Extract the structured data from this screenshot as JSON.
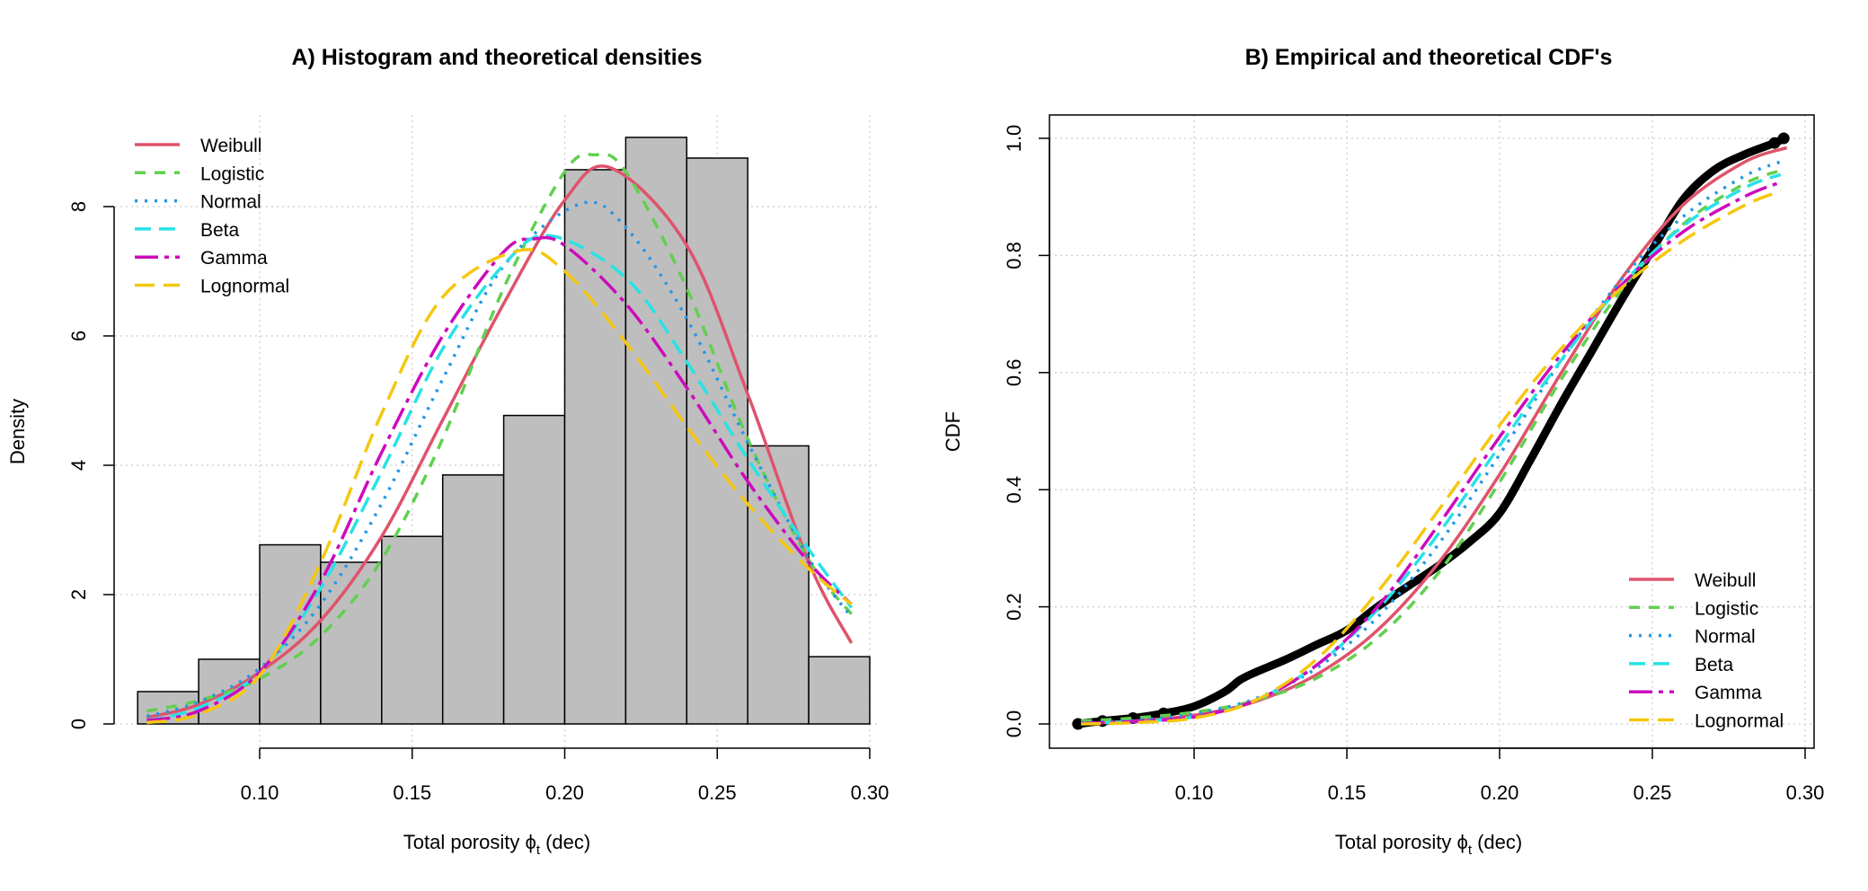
{
  "chart_data": [
    {
      "type": "histogram+line",
      "title": "A) Histogram and theoretical densities",
      "xlabel": "Total porosity ϕt (dec)",
      "xlabel_parts": {
        "main": "Total porosity ",
        "symbol": "ϕ",
        "sub": "t",
        "unit": " (dec)"
      },
      "ylabel": "Density",
      "xlim": [
        0.06,
        0.3
      ],
      "ylim": [
        0,
        9.2
      ],
      "xticks": [
        "0.10",
        "0.15",
        "0.20",
        "0.25",
        "0.30"
      ],
      "xtick_values": [
        0.1,
        0.15,
        0.2,
        0.25,
        0.3
      ],
      "yticks": [
        "0",
        "2",
        "4",
        "6",
        "8"
      ],
      "ytick_values": [
        0,
        2,
        4,
        6,
        8
      ],
      "grid": true,
      "legend_position": "top-left",
      "histogram": {
        "bin_edges": [
          0.06,
          0.08,
          0.1,
          0.12,
          0.14,
          0.16,
          0.18,
          0.2,
          0.22,
          0.24,
          0.26,
          0.28,
          0.3
        ],
        "densities": [
          0.5,
          1.0,
          2.77,
          2.5,
          2.9,
          3.85,
          4.77,
          8.57,
          9.07,
          8.75,
          4.3,
          1.04
        ],
        "fill": "#BEBEBE"
      },
      "series": [
        {
          "name": "Weibull",
          "color": "#DF536B",
          "style": "solid",
          "x": [
            0.063,
            0.08,
            0.1,
            0.12,
            0.14,
            0.16,
            0.18,
            0.2,
            0.215,
            0.24,
            0.26,
            0.28,
            0.294
          ],
          "y": [
            0.1,
            0.3,
            0.8,
            1.6,
            2.9,
            4.7,
            6.5,
            8.1,
            8.6,
            7.4,
            5.1,
            2.5,
            1.25
          ]
        },
        {
          "name": "Logistic",
          "color": "#61D04F",
          "style": "dashed",
          "x": [
            0.063,
            0.08,
            0.1,
            0.12,
            0.14,
            0.16,
            0.18,
            0.2,
            0.21,
            0.22,
            0.24,
            0.26,
            0.28,
            0.294
          ],
          "y": [
            0.2,
            0.36,
            0.7,
            1.36,
            2.54,
            4.41,
            6.74,
            8.54,
            8.8,
            8.54,
            6.74,
            4.41,
            2.54,
            1.7
          ]
        },
        {
          "name": "Normal",
          "color": "#2297E6",
          "style": "dotted",
          "x": [
            0.063,
            0.08,
            0.1,
            0.12,
            0.14,
            0.16,
            0.18,
            0.205,
            0.22,
            0.24,
            0.26,
            0.28,
            0.294
          ],
          "y": [
            0.12,
            0.34,
            0.86,
            1.85,
            3.41,
            5.33,
            7.08,
            8.04,
            7.68,
            6.27,
            4.35,
            2.56,
            1.65
          ]
        },
        {
          "name": "Beta",
          "color": "#28E2E5",
          "style": "longdash",
          "x": [
            0.063,
            0.08,
            0.1,
            0.12,
            0.14,
            0.16,
            0.18,
            0.195,
            0.22,
            0.24,
            0.26,
            0.28,
            0.294
          ],
          "y": [
            0.05,
            0.25,
            0.8,
            2.1,
            3.9,
            5.8,
            7.1,
            7.55,
            6.9,
            5.6,
            4.1,
            2.7,
            1.8
          ]
        },
        {
          "name": "Gamma",
          "color": "#CD0BBC",
          "style": "dashdot",
          "x": [
            0.063,
            0.08,
            0.1,
            0.12,
            0.14,
            0.16,
            0.18,
            0.19,
            0.2,
            0.22,
            0.24,
            0.26,
            0.28,
            0.294
          ],
          "y": [
            0.05,
            0.2,
            0.8,
            2.2,
            4.2,
            6.0,
            7.3,
            7.5,
            7.4,
            6.5,
            5.2,
            3.75,
            2.5,
            1.85
          ]
        },
        {
          "name": "Lognormal",
          "color": "#F5C710",
          "style": "twodash",
          "x": [
            0.063,
            0.08,
            0.1,
            0.12,
            0.14,
            0.16,
            0.185,
            0.2,
            0.22,
            0.24,
            0.26,
            0.28,
            0.294
          ],
          "y": [
            0.02,
            0.15,
            0.75,
            2.5,
            4.8,
            6.6,
            7.32,
            7.0,
            5.9,
            4.6,
            3.4,
            2.4,
            1.85
          ]
        }
      ]
    },
    {
      "type": "line",
      "title": "B) Empirical and theoretical CDF's",
      "xlabel": "Total porosity ϕt (dec)",
      "xlabel_parts": {
        "main": "Total porosity ",
        "symbol": "ϕ",
        "sub": "t",
        "unit": " (dec)"
      },
      "ylabel": "CDF",
      "xlim": [
        0.06,
        0.3
      ],
      "ylim": [
        0,
        1.0
      ],
      "xticks": [
        "0.10",
        "0.15",
        "0.20",
        "0.25",
        "0.30"
      ],
      "xtick_values": [
        0.1,
        0.15,
        0.2,
        0.25,
        0.3
      ],
      "yticks": [
        "0.0",
        "0.2",
        "0.4",
        "0.6",
        "0.8",
        "1.0"
      ],
      "ytick_values": [
        0,
        0.2,
        0.4,
        0.6,
        0.8,
        1.0
      ],
      "grid": true,
      "legend_position": "bottom-right",
      "empirical": {
        "color": "#000000",
        "x": [
          0.062,
          0.07,
          0.08,
          0.09,
          0.1,
          0.11,
          0.115,
          0.12,
          0.13,
          0.14,
          0.15,
          0.16,
          0.17,
          0.18,
          0.19,
          0.2,
          0.21,
          0.22,
          0.23,
          0.24,
          0.25,
          0.26,
          0.27,
          0.28,
          0.29,
          0.293
        ],
        "y": [
          0.0,
          0.005,
          0.01,
          0.018,
          0.03,
          0.055,
          0.075,
          0.088,
          0.11,
          0.135,
          0.16,
          0.2,
          0.235,
          0.27,
          0.31,
          0.36,
          0.45,
          0.545,
          0.635,
          0.725,
          0.81,
          0.895,
          0.945,
          0.972,
          0.992,
          1.0
        ]
      },
      "series": [
        {
          "name": "Weibull",
          "color": "#DF536B",
          "style": "solid",
          "x": [
            0.063,
            0.08,
            0.1,
            0.12,
            0.14,
            0.16,
            0.18,
            0.2,
            0.22,
            0.24,
            0.26,
            0.28,
            0.294
          ],
          "y": [
            0.001,
            0.005,
            0.015,
            0.038,
            0.084,
            0.16,
            0.275,
            0.426,
            0.598,
            0.761,
            0.886,
            0.959,
            0.984
          ]
        },
        {
          "name": "Logistic",
          "color": "#61D04F",
          "style": "dashed",
          "x": [
            0.063,
            0.08,
            0.1,
            0.12,
            0.14,
            0.16,
            0.18,
            0.2,
            0.22,
            0.24,
            0.26,
            0.28,
            0.292
          ],
          "y": [
            0.005,
            0.01,
            0.02,
            0.04,
            0.078,
            0.147,
            0.258,
            0.413,
            0.587,
            0.742,
            0.853,
            0.922,
            0.945
          ]
        },
        {
          "name": "Normal",
          "color": "#2297E6",
          "style": "dotted",
          "x": [
            0.063,
            0.08,
            0.1,
            0.12,
            0.14,
            0.16,
            0.18,
            0.2,
            0.22,
            0.24,
            0.26,
            0.28,
            0.292
          ],
          "y": [
            0.002,
            0.006,
            0.017,
            0.043,
            0.095,
            0.182,
            0.307,
            0.46,
            0.619,
            0.76,
            0.866,
            0.935,
            0.96
          ]
        },
        {
          "name": "Beta",
          "color": "#28E2E5",
          "style": "longdash",
          "x": [
            0.063,
            0.08,
            0.1,
            0.12,
            0.14,
            0.16,
            0.18,
            0.2,
            0.22,
            0.24,
            0.26,
            0.28,
            0.292
          ],
          "y": [
            0.001,
            0.004,
            0.012,
            0.04,
            0.1,
            0.195,
            0.325,
            0.475,
            0.62,
            0.75,
            0.85,
            0.915,
            0.938
          ]
        },
        {
          "name": "Gamma",
          "color": "#CD0BBC",
          "style": "dashdot",
          "x": [
            0.063,
            0.08,
            0.1,
            0.12,
            0.14,
            0.16,
            0.18,
            0.2,
            0.22,
            0.24,
            0.26,
            0.28,
            0.292
          ],
          "y": [
            0.001,
            0.004,
            0.012,
            0.04,
            0.1,
            0.2,
            0.34,
            0.49,
            0.63,
            0.75,
            0.84,
            0.9,
            0.925
          ]
        },
        {
          "name": "Lognormal",
          "color": "#F5C710",
          "style": "twodash",
          "x": [
            0.063,
            0.08,
            0.1,
            0.12,
            0.14,
            0.16,
            0.18,
            0.2,
            0.22,
            0.24,
            0.26,
            0.28,
            0.292
          ],
          "y": [
            0.0,
            0.002,
            0.01,
            0.04,
            0.11,
            0.225,
            0.365,
            0.51,
            0.64,
            0.745,
            0.825,
            0.885,
            0.91
          ]
        }
      ]
    }
  ]
}
